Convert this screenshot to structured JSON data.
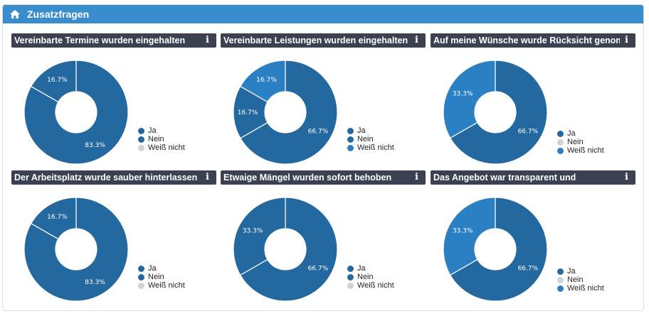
{
  "header": {
    "title": "Zusatzfragen",
    "icon": "home-icon"
  },
  "colors": {
    "ja": "#2468a0",
    "nein": "#2b80c4",
    "weiss": "#d2d2d2",
    "headerBg": "#3a8dcc",
    "cardTitleBg": "#3b4150"
  },
  "cards": [
    {
      "title": "Vereinbarte Termine wurden eingehalten",
      "chart_data": {
        "type": "pie",
        "categories": [
          "Ja",
          "Nein",
          "Weiß nicht"
        ],
        "values": [
          83.3,
          16.7,
          0
        ],
        "labels": [
          "83.3%",
          "16.7%",
          ""
        ],
        "legend_colors": [
          "#2468a0",
          "#2468a0",
          "#d2d2d2"
        ]
      }
    },
    {
      "title": "Vereinbarte Leistungen wurden eingehalten",
      "chart_data": {
        "type": "pie",
        "categories": [
          "Ja",
          "Nein",
          "Weiß nicht"
        ],
        "values": [
          66.7,
          16.7,
          16.7
        ],
        "labels": [
          "66.7%",
          "16.7%",
          "16.7%"
        ],
        "legend_colors": [
          "#2468a0",
          "#2468a0",
          "#2b80c4"
        ]
      }
    },
    {
      "title": "Auf meine Wünsche wurde Rücksicht genommen",
      "chart_data": {
        "type": "pie",
        "categories": [
          "Ja",
          "Nein",
          "Weiß nicht"
        ],
        "values": [
          66.7,
          0,
          33.3
        ],
        "labels": [
          "66.7%",
          "",
          "33.3%"
        ],
        "legend_colors": [
          "#2468a0",
          "#d2d2d2",
          "#2b80c4"
        ]
      }
    },
    {
      "title": "Der Arbeitsplatz wurde sauber hinterlassen",
      "chart_data": {
        "type": "pie",
        "categories": [
          "Ja",
          "Nein",
          "Weiß nicht"
        ],
        "values": [
          83.3,
          16.7,
          0
        ],
        "labels": [
          "83.3%",
          "16.7%",
          ""
        ],
        "legend_colors": [
          "#2468a0",
          "#2468a0",
          "#d2d2d2"
        ]
      }
    },
    {
      "title": "Etwaige Mängel wurden sofort behoben",
      "chart_data": {
        "type": "pie",
        "categories": [
          "Ja",
          "Nein",
          "Weiß nicht"
        ],
        "values": [
          66.7,
          33.3,
          0
        ],
        "labels": [
          "66.7%",
          "33.3%",
          ""
        ],
        "legend_colors": [
          "#2468a0",
          "#2468a0",
          "#d2d2d2"
        ]
      }
    },
    {
      "title": "Das Angebot war transparent und",
      "chart_data": {
        "type": "pie",
        "categories": [
          "Ja",
          "Nein",
          "Weiß nicht"
        ],
        "values": [
          66.7,
          0,
          33.3
        ],
        "labels": [
          "66.7%",
          "",
          "33.3%"
        ],
        "legend_colors": [
          "#2468a0",
          "#d2d2d2",
          "#2b80c4"
        ]
      }
    }
  ]
}
